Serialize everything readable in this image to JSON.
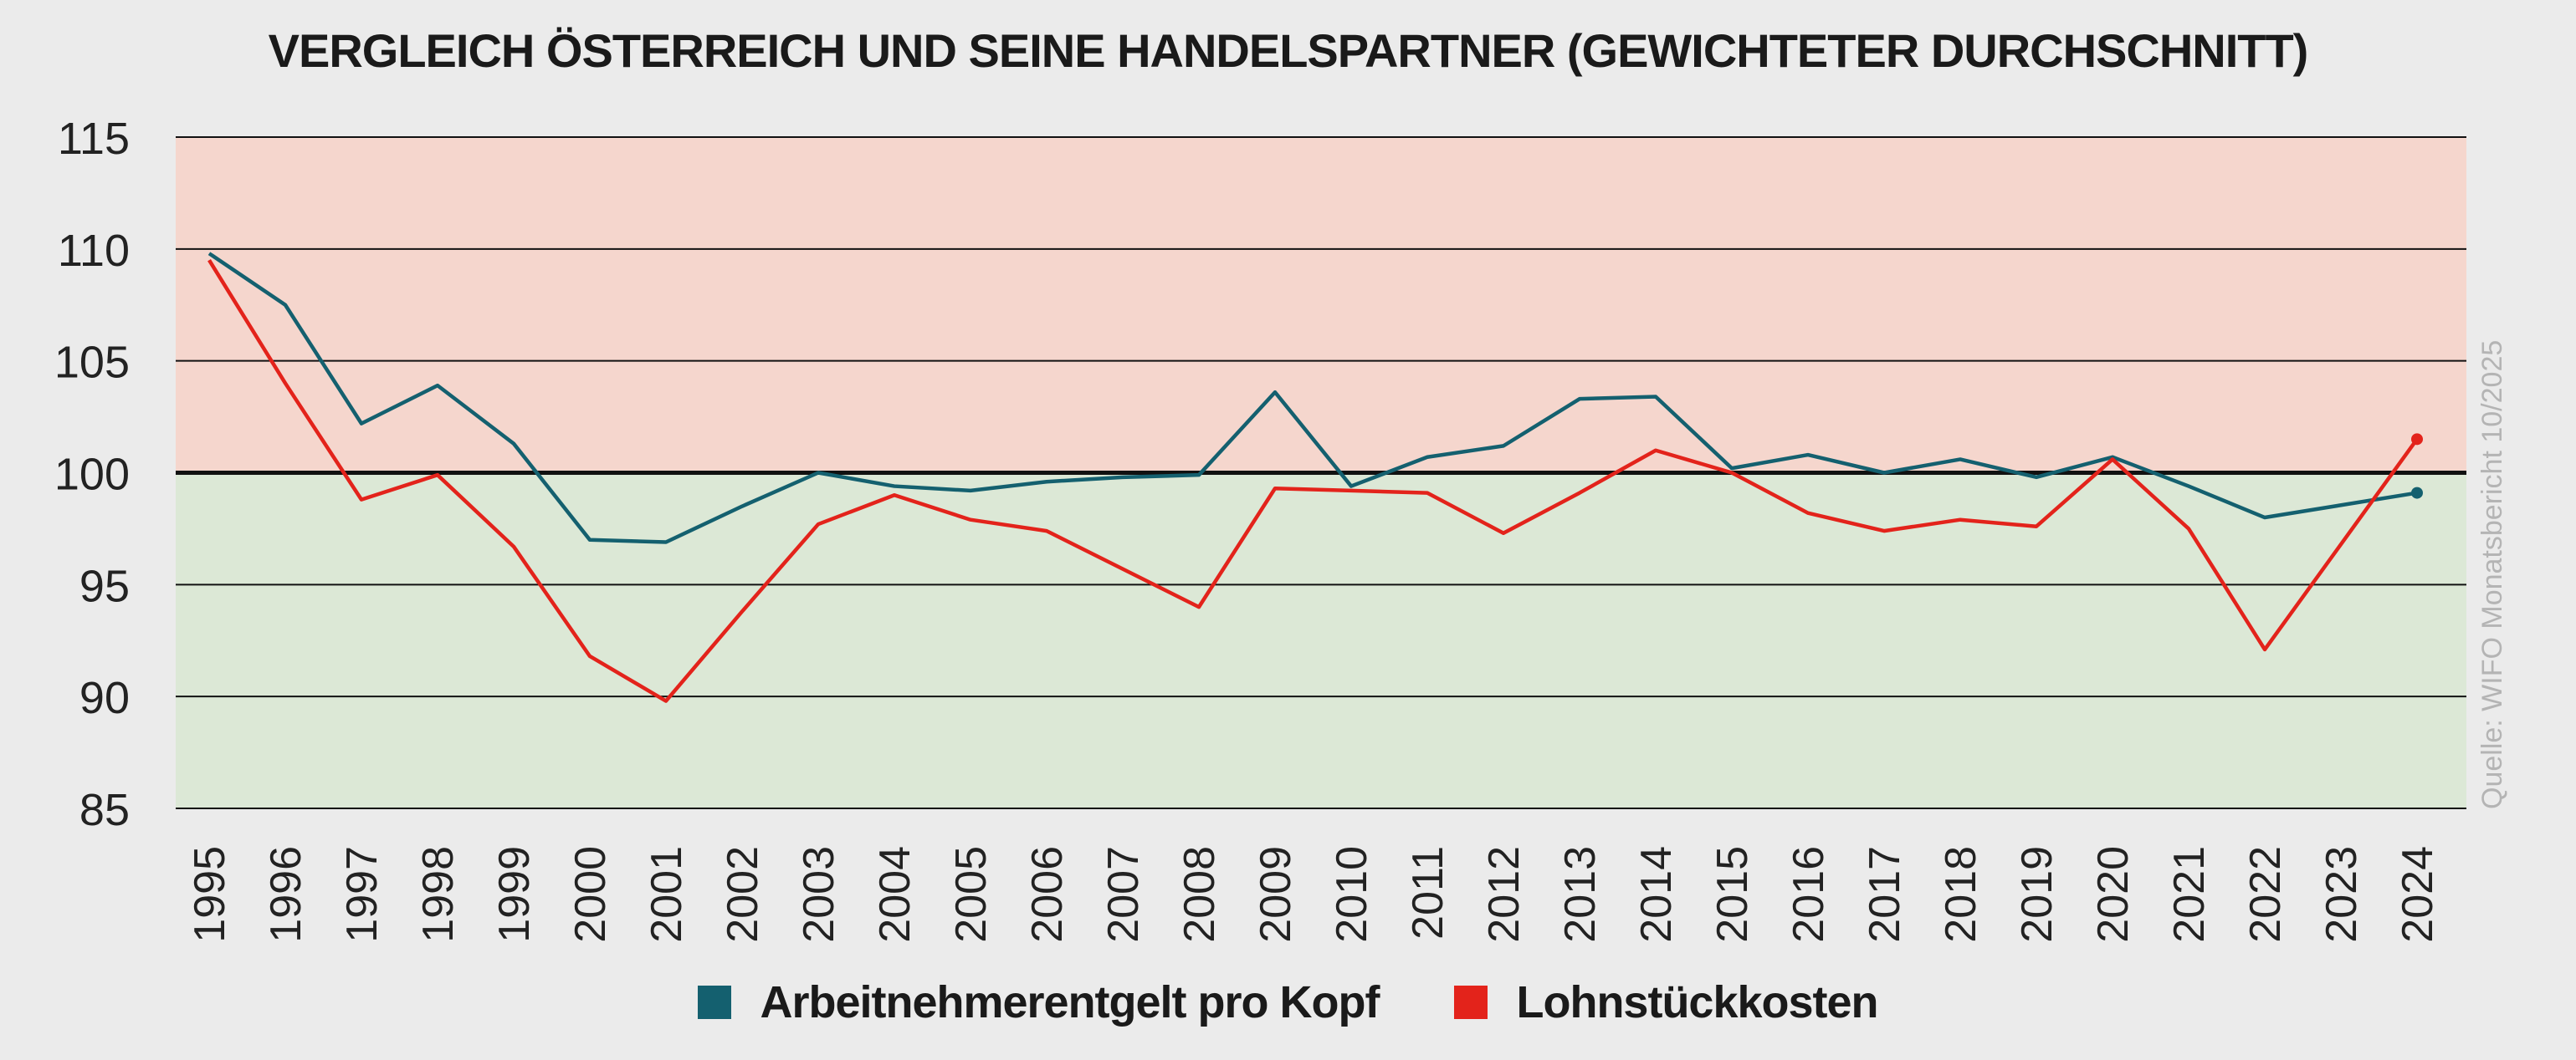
{
  "chart_data": {
    "type": "line",
    "title": "VERGLEICH ÖSTERREICH UND SEINE HANDELSPARTNER (GEWICHTETER DURCHSCHNITT)",
    "xlabel": "",
    "ylabel": "",
    "ylim": [
      85,
      115
    ],
    "yticks": [
      "115",
      "110",
      "105",
      "100",
      "95",
      "90",
      "85"
    ],
    "reference_line": 100,
    "background_above_reference": "#f5d6cd",
    "background_below_reference": "#dce8d6",
    "grid": true,
    "legend_position": "bottom-center",
    "categories": [
      "1995",
      "1996",
      "1997",
      "1998",
      "1999",
      "2000",
      "2001",
      "2002",
      "2003",
      "2004",
      "2005",
      "2006",
      "2007",
      "2008",
      "2009",
      "2010",
      "2011",
      "2012",
      "2013",
      "2014",
      "2015",
      "2016",
      "2017",
      "2018",
      "2019",
      "2020",
      "2021",
      "2022",
      "2023",
      "2024"
    ],
    "series": [
      {
        "name": "Arbeitnehmerentgelt pro Kopf",
        "color": "#14606f",
        "values": [
          109.8,
          107.5,
          102.2,
          103.9,
          101.3,
          97.0,
          96.9,
          98.5,
          100.0,
          99.4,
          99.2,
          99.6,
          99.8,
          99.9,
          103.6,
          99.4,
          100.7,
          101.2,
          103.3,
          103.4,
          100.2,
          100.8,
          100.0,
          100.6,
          99.8,
          100.7,
          99.4,
          98.0,
          null,
          99.1
        ],
        "end_marker": true
      },
      {
        "name": "Lohnstückkosten",
        "color": "#e3231b",
        "values": [
          109.5,
          104.0,
          98.8,
          99.9,
          96.7,
          91.8,
          89.8,
          93.8,
          97.7,
          99.0,
          97.9,
          97.4,
          null,
          94.0,
          99.3,
          99.2,
          99.1,
          97.3,
          99.1,
          101.0,
          100.0,
          98.2,
          97.4,
          97.9,
          97.6,
          100.6,
          97.5,
          92.1,
          null,
          101.5
        ],
        "end_marker": true
      }
    ]
  },
  "source_note": "Quelle: WIFO Monatsbericht 10/2025"
}
